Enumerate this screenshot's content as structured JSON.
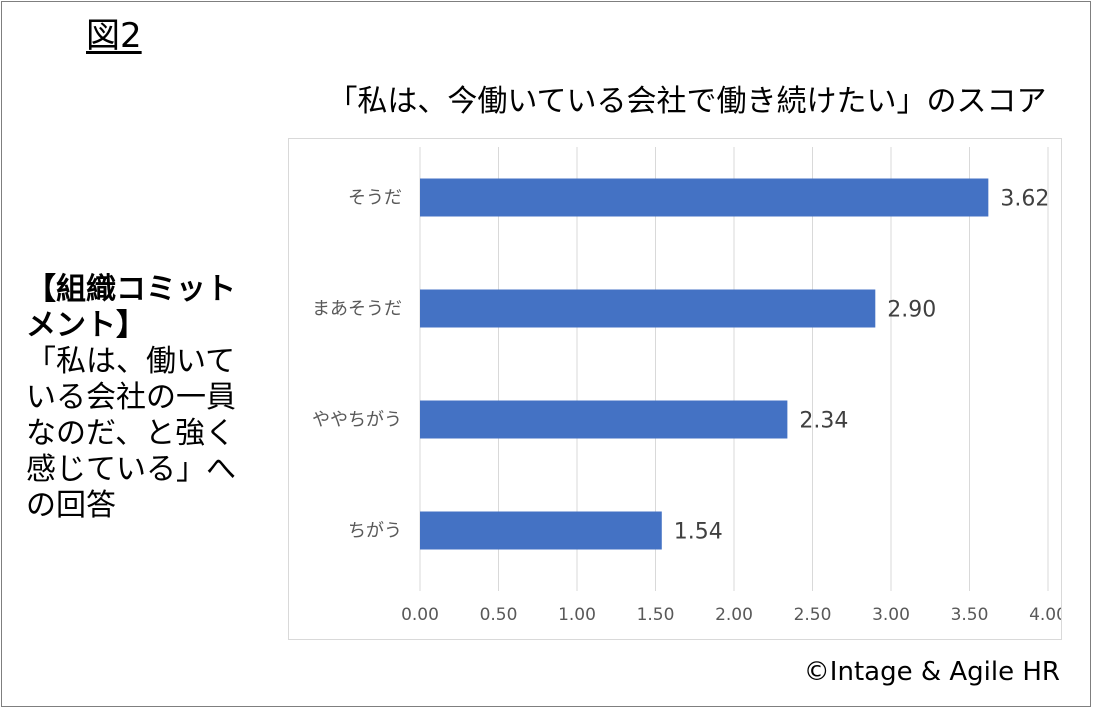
{
  "figure_label": "図2",
  "left_panel": {
    "heading": "【組織コミットメント】",
    "body": "「私は、働いている会社の一員なのだ、と強く感じている」への回答"
  },
  "copyright": "©Intage & Agile HR",
  "colors": {
    "bar": "#4472c4",
    "grid": "#d9d9d9",
    "tick_text": "#595959"
  },
  "chart_data": {
    "type": "bar",
    "orientation": "horizontal",
    "title": "「私は、今働いている会社で働き続けたい」のスコア",
    "xlabel": "",
    "ylabel": "",
    "categories": [
      "そうだ",
      "まあそうだ",
      "ややちがう",
      "ちがう"
    ],
    "values": [
      3.62,
      2.9,
      2.34,
      1.54
    ],
    "data_labels": [
      "3.62",
      "2.90",
      "2.34",
      "1.54"
    ],
    "xlim": [
      0,
      4
    ],
    "ticks": [
      0,
      0.5,
      1,
      1.5,
      2,
      2.5,
      3,
      3.5,
      4
    ],
    "tick_labels": [
      "0.00",
      "0.50",
      "1.00",
      "1.50",
      "2.00",
      "2.50",
      "3.00",
      "3.50",
      "4.00"
    ],
    "grid": "vertical",
    "legend": "none"
  }
}
